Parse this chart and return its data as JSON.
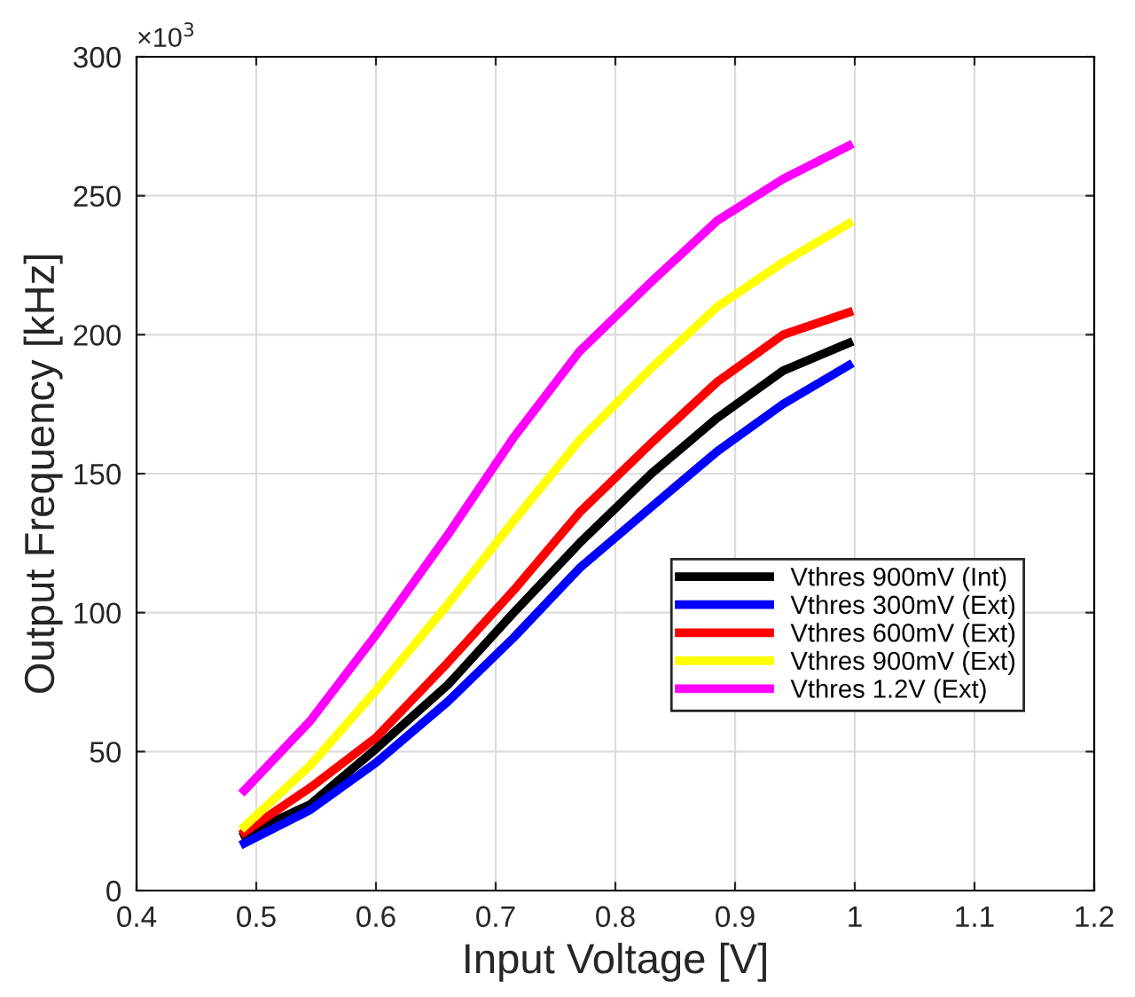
{
  "chart_data": {
    "type": "line",
    "xlabel": "Input Voltage [V]",
    "ylabel": "Output Frequency [kHz]",
    "annotations": [
      "×10$^{3}$"
    ],
    "x": [
      0.49,
      0.545,
      0.6,
      0.66,
      0.715,
      0.77,
      0.83,
      0.885,
      0.94,
      0.995
    ],
    "series": [
      {
        "name": "Vthres 900mV (Int)",
        "color": "#000000",
        "values": [
          20,
          31,
          51,
          74,
          100,
          125,
          150,
          170,
          187,
          197
        ]
      },
      {
        "name": "Vthres 300mV (Ext)",
        "color": "#0000ff",
        "values": [
          17,
          29,
          46,
          68,
          91,
          116,
          138,
          158,
          175,
          189
        ]
      },
      {
        "name": "Vthres 600mV (Ext)",
        "color": "#ff0000",
        "values": [
          21,
          37,
          55,
          82,
          108,
          136,
          161,
          183,
          200,
          208
        ]
      },
      {
        "name": "Vthres 900mV (Ext)",
        "color": "#ffff00",
        "values": [
          23,
          45,
          72,
          103,
          133,
          162,
          188,
          210,
          226,
          240
        ]
      },
      {
        "name": "Vthres 1.2V (Ext)",
        "color": "#ff00ff",
        "values": [
          36,
          61,
          92,
          128,
          163,
          194,
          219,
          241,
          256,
          268
        ]
      }
    ],
    "xlim": [
      0.4,
      1.2
    ],
    "xticks": [
      0.4,
      0.5,
      0.6,
      0.7,
      0.8,
      0.9,
      1,
      1.1,
      1.2
    ],
    "ylim": [
      0,
      300
    ],
    "yticks": [
      0,
      50,
      100,
      150,
      200,
      250,
      300
    ],
    "grid": true,
    "legend": "bottom right",
    "line_style": "solid",
    "marker": "none"
  }
}
